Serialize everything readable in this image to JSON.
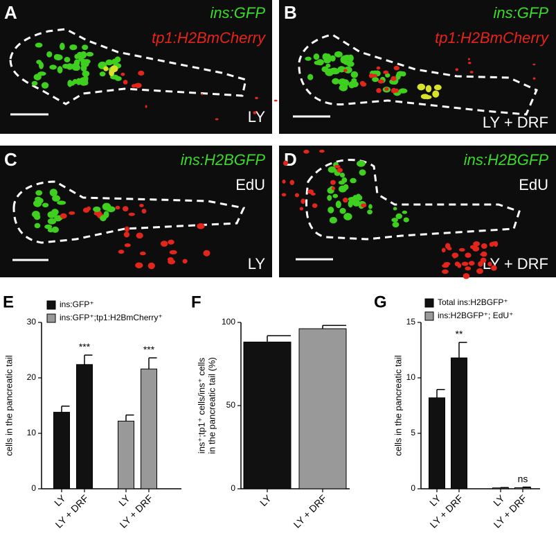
{
  "image_panels": [
    {
      "letter": "A",
      "green_label": "ins:GFP",
      "red_label": "tp1:H2BmCherry",
      "condition": "LY"
    },
    {
      "letter": "B",
      "green_label": "ins:GFP",
      "red_label": "tp1:H2BmCherry",
      "condition": "LY + DRF"
    },
    {
      "letter": "C",
      "green_label": "ins:H2BGFP",
      "red_label": "EdU",
      "condition": "LY"
    },
    {
      "letter": "D",
      "green_label": "ins:H2BGFP",
      "red_label": "EdU",
      "condition": "LY + DRF"
    }
  ],
  "chart_data": [
    {
      "type": "bar",
      "panel": "E",
      "ylabel": [
        "cells in the pancreatic tail"
      ],
      "categories": [
        "LY",
        "LY + DRF",
        "LY",
        "LY + DRF"
      ],
      "series": [
        {
          "name": "ins:GFP⁺",
          "color": "#111111",
          "values": [
            13.8,
            22.4,
            null,
            null
          ],
          "errors": [
            1.1,
            1.7,
            null,
            null
          ],
          "annotations": [
            null,
            "***",
            null,
            null
          ]
        },
        {
          "name": "ins:GFP⁺;tp1:H2BmCherry⁺",
          "color": "#999999",
          "values": [
            null,
            null,
            12.2,
            21.6
          ],
          "errors": [
            null,
            null,
            1.1,
            2.0
          ],
          "annotations": [
            null,
            null,
            null,
            "***"
          ]
        }
      ],
      "ylim": [
        0,
        30
      ],
      "yticks": [
        0,
        10,
        20,
        30
      ],
      "legend": "upper left"
    },
    {
      "type": "bar",
      "panel": "F",
      "ylabel": [
        "ins⁺;tp1⁺ cells/ins⁺ cells",
        "in the pancreatic tail (%)"
      ],
      "categories": [
        "LY",
        "LY + DRF"
      ],
      "series": [
        {
          "color": "#111111",
          "values": [
            88.2,
            null
          ],
          "errors": [
            3.8,
            null
          ]
        },
        {
          "color": "#999999",
          "values": [
            null,
            96.2
          ],
          "errors": [
            null,
            2.0
          ]
        }
      ],
      "ylim": [
        0,
        100
      ],
      "yticks": [
        0,
        50,
        100
      ]
    },
    {
      "type": "bar",
      "panel": "G",
      "ylabel": [
        "cells in the pancreatic tail"
      ],
      "categories": [
        "LY",
        "LY + DRF",
        "LY",
        "LY + DRF"
      ],
      "series": [
        {
          "name": "Total ins:H2BGFP⁺",
          "color": "#111111",
          "values": [
            8.2,
            11.8,
            null,
            null
          ],
          "errors": [
            0.75,
            1.4,
            null,
            null
          ],
          "annotations": [
            null,
            "**",
            null,
            null
          ]
        },
        {
          "name": "ins:H2BGFP⁺; EdU⁺",
          "color": "#999999",
          "values": [
            null,
            null,
            0.08,
            0.1
          ],
          "errors": [
            null,
            null,
            0.03,
            0.05
          ],
          "annotations": [
            null,
            null,
            null,
            "ns"
          ]
        }
      ],
      "ylim": [
        0,
        15
      ],
      "yticks": [
        0,
        5,
        10,
        15
      ],
      "legend": "upper left"
    }
  ]
}
